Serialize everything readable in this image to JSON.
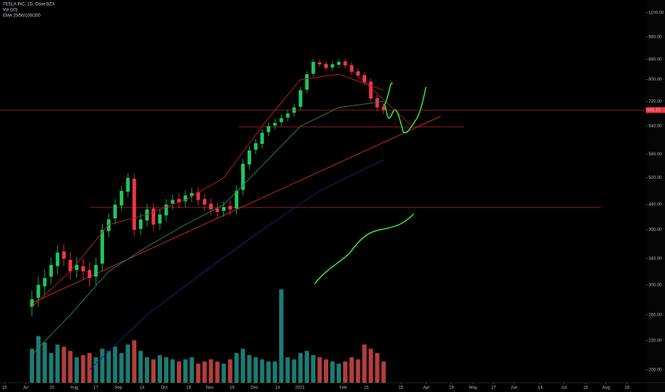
{
  "chart_data": {
    "type": "candlestick",
    "title": "TESLA INC, 1D, Cboe BZX",
    "indicators": [
      "Vol (20)",
      "EMA 20/50/100/200"
    ],
    "x": [
      4,
      5,
      6,
      7,
      8,
      9,
      10,
      11,
      12,
      13,
      14,
      15,
      16,
      17,
      18,
      19,
      20,
      21,
      22,
      23,
      24,
      25,
      26,
      27,
      28,
      29,
      30,
      31,
      32,
      33,
      34,
      35,
      36,
      37,
      38,
      39,
      40,
      41,
      42,
      43,
      44,
      45,
      46,
      47,
      48,
      49,
      50,
      51,
      52,
      53,
      54,
      55,
      56,
      57,
      58,
      59
    ],
    "open": [
      270,
      282,
      298,
      312,
      328,
      352,
      338,
      322,
      328,
      322,
      312,
      332,
      388,
      412,
      438,
      468,
      498,
      392,
      408,
      432,
      402,
      418,
      442,
      452,
      447,
      458,
      467,
      452,
      442,
      432,
      427,
      437,
      432,
      472,
      533,
      572,
      588,
      622,
      642,
      652,
      667,
      682,
      702,
      762,
      822,
      868,
      862,
      847,
      858,
      872,
      857,
      832,
      817,
      792,
      732,
      702
    ],
    "high": [
      292,
      312,
      322,
      342,
      362,
      364,
      350,
      342,
      340,
      334,
      342,
      402,
      422,
      452,
      482,
      512,
      510,
      422,
      442,
      444,
      432,
      452,
      462,
      464,
      472,
      477,
      479,
      464,
      454,
      444,
      447,
      449,
      482,
      547,
      582,
      602,
      632,
      652,
      662,
      677,
      692,
      712,
      772,
      832,
      882,
      880,
      874,
      872,
      882,
      884,
      869,
      844,
      829,
      804,
      744,
      714
    ],
    "low": [
      258,
      270,
      286,
      300,
      316,
      328,
      308,
      310,
      308,
      298,
      300,
      320,
      376,
      400,
      426,
      456,
      378,
      380,
      396,
      388,
      390,
      406,
      430,
      433,
      435,
      446,
      438,
      428,
      418,
      413,
      415,
      418,
      420,
      460,
      521,
      560,
      576,
      610,
      630,
      640,
      655,
      670,
      690,
      750,
      810,
      848,
      833,
      835,
      846,
      843,
      818,
      803,
      778,
      718,
      688,
      678
    ],
    "close": [
      280,
      300,
      310,
      330,
      350,
      340,
      320,
      330,
      320,
      310,
      330,
      390,
      410,
      440,
      470,
      500,
      390,
      410,
      430,
      400,
      420,
      440,
      450,
      445,
      460,
      465,
      450,
      440,
      430,
      425,
      435,
      430,
      470,
      535,
      570,
      590,
      620,
      640,
      650,
      665,
      680,
      700,
      760,
      820,
      870,
      860,
      845,
      860,
      870,
      855,
      830,
      815,
      790,
      730,
      700,
      690
    ],
    "volume": [
      80,
      110,
      95,
      70,
      90,
      85,
      75,
      60,
      65,
      70,
      60,
      80,
      75,
      85,
      70,
      90,
      100,
      75,
      60,
      55,
      65,
      60,
      55,
      50,
      55,
      60,
      45,
      50,
      55,
      50,
      45,
      55,
      70,
      80,
      65,
      60,
      55,
      50,
      50,
      220,
      60,
      55,
      70,
      75,
      65,
      60,
      55,
      50,
      45,
      50,
      60,
      55,
      90,
      80,
      70,
      50
    ],
    "up_color": "#22c55e",
    "down_color": "#f23645",
    "volume_up_color": "#26a69a",
    "volume_down_color": "#ef5350",
    "series": [
      {
        "color": "#b71c1c",
        "x": [
          4,
          10,
          16,
          22,
          28,
          34,
          40,
          46,
          52,
          59
        ],
        "values": [
          270,
          320,
          400,
          420,
          450,
          500,
          640,
          800,
          820,
          760
        ]
      },
      {
        "color": "#2e7d5a",
        "x": [
          4,
          10,
          16,
          22,
          28,
          34,
          40,
          46,
          52,
          59
        ],
        "values": [
          215,
          260,
          320,
          360,
          400,
          440,
          530,
          640,
          700,
          720
        ]
      },
      {
        "color": "#1a237e",
        "x": [
          13,
          22,
          31,
          40,
          49,
          59
        ],
        "values": [
          200,
          260,
          320,
          390,
          470,
          545
        ]
      }
    ],
    "last_price": {
      "value": 691.1,
      "label": "691.10"
    },
    "ylim": [
      188,
      1169
    ],
    "log_y": true,
    "yticks": [
      {
        "value": 1100,
        "label": "1100.00"
      },
      {
        "value": 980,
        "label": "980.00"
      },
      {
        "value": 880,
        "label": "880.00"
      },
      {
        "value": 800,
        "label": "800.00"
      },
      {
        "value": 720,
        "label": "720.00"
      },
      {
        "value": 640,
        "label": "640.00"
      },
      {
        "value": 560,
        "label": "560.00"
      },
      {
        "value": 500,
        "label": "500.00"
      },
      {
        "value": 440,
        "label": "440.00"
      },
      {
        "value": 390,
        "label": "390.00"
      },
      {
        "value": 340,
        "label": "340.00"
      },
      {
        "value": 300,
        "label": "300.00"
      },
      {
        "value": 260,
        "label": "260.00"
      },
      {
        "value": 230,
        "label": "230.00"
      },
      {
        "value": 200,
        "label": "200.00"
      }
    ],
    "vlim": [
      0,
      230
    ],
    "xlim": [
      -1,
      100
    ],
    "xticks": [
      {
        "value": -0.3,
        "label": "15"
      },
      {
        "value": 3,
        "label": "Jul"
      },
      {
        "value": 7.1,
        "label": "20"
      },
      {
        "value": 10.6,
        "label": "Aug"
      },
      {
        "value": 14,
        "label": "17"
      },
      {
        "value": 17.5,
        "label": "Sep"
      },
      {
        "value": 21.2,
        "label": "14"
      },
      {
        "value": 24.7,
        "label": "Oct"
      },
      {
        "value": 28.5,
        "label": "19"
      },
      {
        "value": 31.8,
        "label": "Nov"
      },
      {
        "value": 35.3,
        "label": "16"
      },
      {
        "value": 38.8,
        "label": "Dec"
      },
      {
        "value": 42.4,
        "label": "14"
      },
      {
        "value": 45.9,
        "label": "2021"
      },
      {
        "value": 52.7,
        "label": "Feb"
      },
      {
        "value": 56.3,
        "label": "15"
      },
      {
        "value": 61.7,
        "label": "15"
      },
      {
        "value": 65.7,
        "label": "Apr"
      },
      {
        "value": 69.6,
        "label": "19"
      },
      {
        "value": 73,
        "label": "May"
      },
      {
        "value": 76.2,
        "label": "17"
      },
      {
        "value": 79.4,
        "label": "Jun"
      },
      {
        "value": 83.5,
        "label": "14"
      },
      {
        "value": 87.2,
        "label": "Jul"
      },
      {
        "value": 90.6,
        "label": "16"
      },
      {
        "value": 93.8,
        "label": "Aug"
      },
      {
        "value": 97.1,
        "label": "16"
      }
    ]
  }
}
